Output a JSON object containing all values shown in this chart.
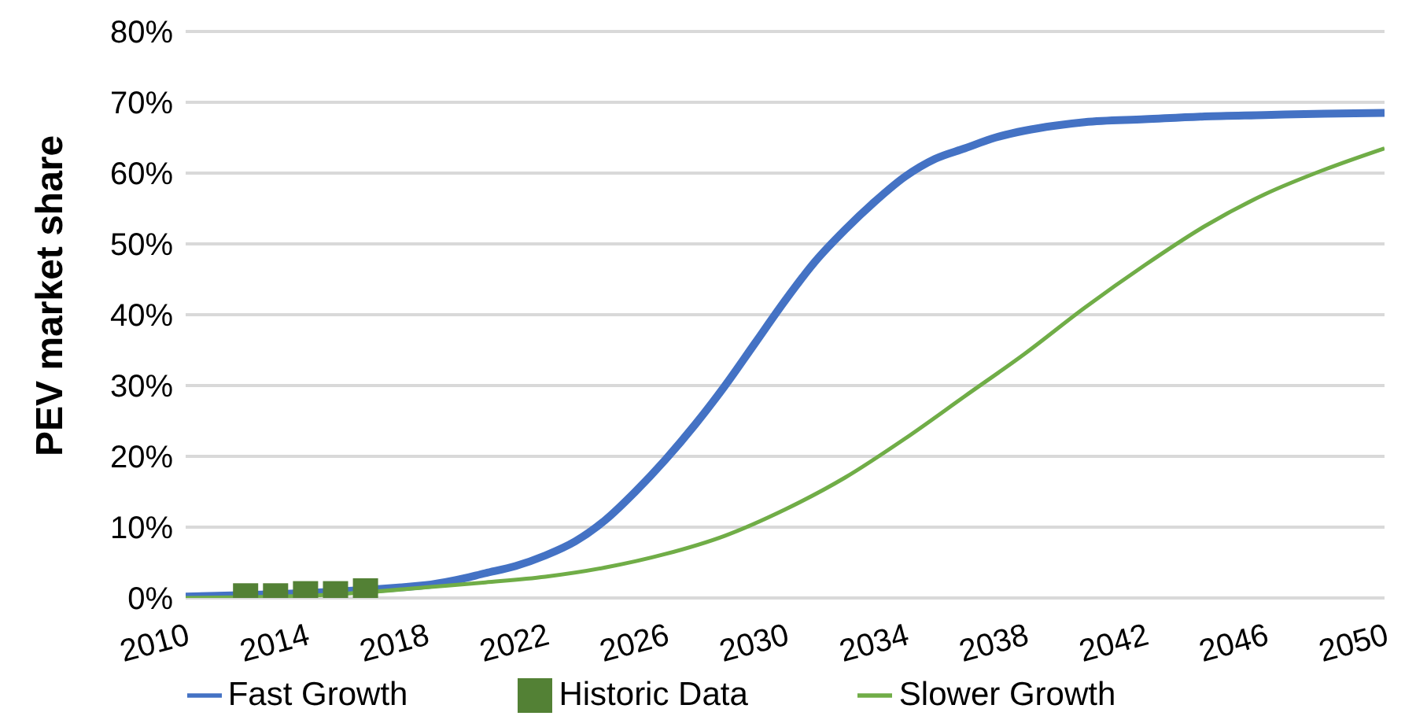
{
  "chart_data": {
    "type": "line",
    "ylabel": "PEV market share",
    "xlim": [
      2010,
      2050
    ],
    "xticks": [
      2010,
      2014,
      2018,
      2022,
      2026,
      2030,
      2034,
      2038,
      2042,
      2046,
      2050
    ],
    "ylim": [
      0,
      80
    ],
    "yticks": [
      {
        "value": 0,
        "label": "0%"
      },
      {
        "value": 10,
        "label": "10%"
      },
      {
        "value": 20,
        "label": "20%"
      },
      {
        "value": 30,
        "label": "30%"
      },
      {
        "value": 40,
        "label": "40%"
      },
      {
        "value": 50,
        "label": "50%"
      },
      {
        "value": 60,
        "label": "60%"
      },
      {
        "value": 70,
        "label": "70%"
      },
      {
        "value": 80,
        "label": "80%"
      }
    ],
    "grid": "y",
    "legend": "bottom",
    "series": [
      {
        "name": "Fast Growth",
        "color": "#4472c4",
        "marker": "none",
        "x": [
          2010,
          2012,
          2014,
          2016,
          2018,
          2019,
          2020,
          2021,
          2022,
          2023,
          2024,
          2025,
          2026,
          2027,
          2028,
          2029,
          2030,
          2031,
          2032,
          2033,
          2034,
          2035,
          2036,
          2037,
          2038,
          2039,
          2040,
          2042,
          2044,
          2046,
          2048,
          2050
        ],
        "values": [
          0.2,
          null,
          null,
          null,
          1.8,
          2.5,
          3.5,
          4.5,
          6,
          8,
          11,
          15,
          19.5,
          24.5,
          30,
          36,
          42,
          47.5,
          52,
          56,
          59.5,
          62,
          63.5,
          65,
          66,
          66.7,
          67.2,
          67.6,
          68,
          68.2,
          68.4,
          68.5
        ]
      },
      {
        "name": "Historic Data",
        "type": "scatter",
        "color": "#538135",
        "marker": "square",
        "x": [
          2012,
          2013,
          2014,
          2015,
          2016
        ],
        "values": [
          0.3,
          0.3,
          0.6,
          0.6,
          1
        ]
      },
      {
        "name": "Slower Growth",
        "color": "#70ad47",
        "marker": "none",
        "x": [
          2010,
          2014,
          2016,
          2018,
          2020,
          2022,
          2024,
          2026,
          2028,
          2030,
          2032,
          2034,
          2036,
          2038,
          2040,
          2042,
          2044,
          2046,
          2048,
          2050
        ],
        "values": [
          0,
          0.3,
          0.8,
          1.5,
          2.2,
          3,
          4.3,
          6.2,
          8.8,
          12.5,
          17,
          22.5,
          28.5,
          34.5,
          41,
          47,
          52.5,
          57,
          60.5,
          63.5
        ]
      }
    ]
  }
}
